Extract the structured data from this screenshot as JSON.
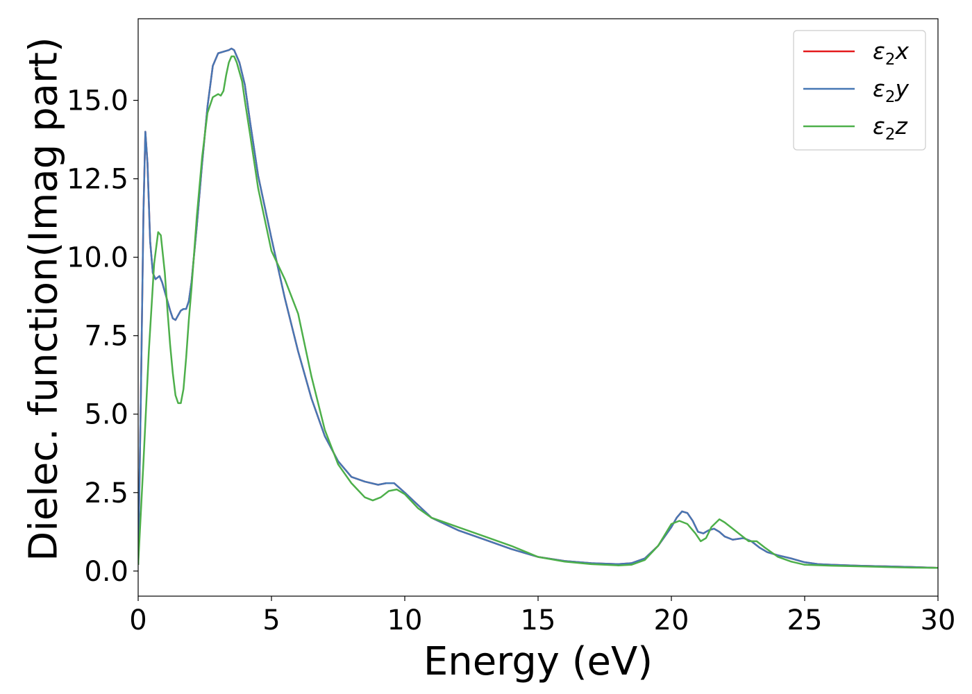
{
  "chart_data": {
    "type": "line",
    "xlabel": "Energy (eV)",
    "ylabel": "Dielec. function(Imag part)",
    "xlim": [
      0,
      30
    ],
    "ylim": [
      -0.8,
      17.6
    ],
    "xticks": [
      0,
      5,
      10,
      15,
      20,
      25,
      30
    ],
    "xtick_labels": [
      "0",
      "5",
      "10",
      "15",
      "20",
      "25",
      "30"
    ],
    "yticks": [
      0,
      2.5,
      5,
      7.5,
      10,
      12.5,
      15
    ],
    "ytick_labels": [
      "0.0",
      "2.5",
      "5.0",
      "7.5",
      "10.0",
      "12.5",
      "15.0"
    ],
    "grid": false,
    "legend_position": "top-right",
    "series": [
      {
        "name": "ε2x",
        "legend_sub": "2",
        "legend_var": "x",
        "color": "#e41a1c",
        "x": [
          0,
          0.1,
          0.2,
          0.27,
          0.35,
          0.45,
          0.55,
          0.65,
          0.8,
          0.9,
          1.0,
          1.1,
          1.2,
          1.3,
          1.4,
          1.5,
          1.6,
          1.7,
          1.8,
          1.9,
          2.0,
          2.2,
          2.4,
          2.6,
          2.8,
          3.0,
          3.2,
          3.4,
          3.5,
          3.6,
          3.8,
          4.0,
          4.2,
          4.5,
          5.0,
          5.5,
          6.0,
          6.5,
          7.0,
          7.5,
          8.0,
          8.5,
          9.0,
          9.3,
          9.6,
          10.0,
          10.5,
          11.0,
          12.0,
          13.0,
          14.0,
          15.0,
          16.0,
          17.0,
          18.0,
          18.5,
          19.0,
          19.5,
          20.0,
          20.2,
          20.4,
          20.6,
          20.8,
          21.0,
          21.2,
          21.4,
          21.6,
          21.8,
          22.0,
          22.3,
          22.7,
          23.0,
          23.3,
          23.6,
          24.0,
          24.5,
          25.0,
          25.5,
          26.0,
          27.0,
          28.0,
          29.0,
          30.0
        ],
        "values": [
          0.2,
          5.5,
          11.5,
          14.0,
          13.0,
          10.5,
          9.5,
          9.3,
          9.4,
          9.2,
          8.9,
          8.6,
          8.3,
          8.05,
          8.0,
          8.15,
          8.3,
          8.35,
          8.35,
          8.6,
          9.2,
          11.0,
          13.0,
          14.8,
          16.1,
          16.5,
          16.55,
          16.6,
          16.65,
          16.6,
          16.2,
          15.5,
          14.3,
          12.6,
          10.6,
          8.7,
          7.0,
          5.5,
          4.3,
          3.5,
          3.0,
          2.85,
          2.75,
          2.8,
          2.8,
          2.5,
          2.1,
          1.7,
          1.3,
          1.0,
          0.7,
          0.45,
          0.32,
          0.25,
          0.22,
          0.25,
          0.4,
          0.8,
          1.4,
          1.7,
          1.9,
          1.85,
          1.6,
          1.25,
          1.2,
          1.3,
          1.35,
          1.25,
          1.1,
          1.0,
          1.05,
          0.95,
          0.75,
          0.6,
          0.5,
          0.4,
          0.28,
          0.22,
          0.2,
          0.17,
          0.15,
          0.13,
          0.1
        ]
      },
      {
        "name": "ε2y",
        "legend_sub": "2",
        "legend_var": "y",
        "color": "#4677b4",
        "x": [
          0,
          0.1,
          0.2,
          0.27,
          0.35,
          0.45,
          0.55,
          0.65,
          0.8,
          0.9,
          1.0,
          1.1,
          1.2,
          1.3,
          1.4,
          1.5,
          1.6,
          1.7,
          1.8,
          1.9,
          2.0,
          2.2,
          2.4,
          2.6,
          2.8,
          3.0,
          3.2,
          3.4,
          3.5,
          3.6,
          3.8,
          4.0,
          4.2,
          4.5,
          5.0,
          5.5,
          6.0,
          6.5,
          7.0,
          7.5,
          8.0,
          8.5,
          9.0,
          9.3,
          9.6,
          10.0,
          10.5,
          11.0,
          12.0,
          13.0,
          14.0,
          15.0,
          16.0,
          17.0,
          18.0,
          18.5,
          19.0,
          19.5,
          20.0,
          20.2,
          20.4,
          20.6,
          20.8,
          21.0,
          21.2,
          21.4,
          21.6,
          21.8,
          22.0,
          22.3,
          22.7,
          23.0,
          23.3,
          23.6,
          24.0,
          24.5,
          25.0,
          25.5,
          26.0,
          27.0,
          28.0,
          29.0,
          30.0
        ],
        "values": [
          0.2,
          5.5,
          11.5,
          14.0,
          13.0,
          10.5,
          9.5,
          9.3,
          9.4,
          9.2,
          8.9,
          8.6,
          8.3,
          8.05,
          8.0,
          8.15,
          8.3,
          8.35,
          8.35,
          8.6,
          9.2,
          11.0,
          13.0,
          14.8,
          16.1,
          16.5,
          16.55,
          16.6,
          16.65,
          16.6,
          16.2,
          15.5,
          14.3,
          12.6,
          10.6,
          8.7,
          7.0,
          5.5,
          4.3,
          3.5,
          3.0,
          2.85,
          2.75,
          2.8,
          2.8,
          2.5,
          2.1,
          1.7,
          1.3,
          1.0,
          0.7,
          0.45,
          0.32,
          0.25,
          0.22,
          0.25,
          0.4,
          0.8,
          1.4,
          1.7,
          1.9,
          1.85,
          1.6,
          1.25,
          1.2,
          1.3,
          1.35,
          1.25,
          1.1,
          1.0,
          1.05,
          0.95,
          0.75,
          0.6,
          0.5,
          0.4,
          0.28,
          0.22,
          0.2,
          0.17,
          0.15,
          0.13,
          0.1
        ]
      },
      {
        "name": "ε2z",
        "legend_sub": "2",
        "legend_var": "z",
        "color": "#4daf4a",
        "x": [
          0,
          0.2,
          0.4,
          0.6,
          0.75,
          0.85,
          1.0,
          1.1,
          1.2,
          1.3,
          1.4,
          1.5,
          1.6,
          1.7,
          1.8,
          1.9,
          2.0,
          2.2,
          2.4,
          2.6,
          2.8,
          3.0,
          3.1,
          3.2,
          3.3,
          3.4,
          3.5,
          3.6,
          3.7,
          3.8,
          3.9,
          4.0,
          4.2,
          4.5,
          5.0,
          5.5,
          6.0,
          6.5,
          7.0,
          7.5,
          8.0,
          8.5,
          8.8,
          9.1,
          9.4,
          9.7,
          10.0,
          10.5,
          11.0,
          12.0,
          13.0,
          14.0,
          15.0,
          16.0,
          17.0,
          18.0,
          18.5,
          19.0,
          19.5,
          20.0,
          20.3,
          20.6,
          20.9,
          21.1,
          21.3,
          21.5,
          21.8,
          22.0,
          22.3,
          22.6,
          22.9,
          23.2,
          23.5,
          24.0,
          24.5,
          25.0,
          26.0,
          27.0,
          28.0,
          29.0,
          30.0
        ],
        "values": [
          0.2,
          3.5,
          7.0,
          9.8,
          10.8,
          10.7,
          9.5,
          8.3,
          7.2,
          6.3,
          5.6,
          5.35,
          5.35,
          5.8,
          6.8,
          8.0,
          9.0,
          11.3,
          13.2,
          14.6,
          15.1,
          15.2,
          15.15,
          15.3,
          15.8,
          16.2,
          16.4,
          16.4,
          16.2,
          15.9,
          15.6,
          15.0,
          13.9,
          12.2,
          10.2,
          9.3,
          8.2,
          6.2,
          4.5,
          3.4,
          2.8,
          2.35,
          2.25,
          2.35,
          2.55,
          2.6,
          2.45,
          2.0,
          1.7,
          1.4,
          1.1,
          0.8,
          0.45,
          0.3,
          0.22,
          0.18,
          0.2,
          0.35,
          0.8,
          1.5,
          1.6,
          1.5,
          1.2,
          0.95,
          1.05,
          1.4,
          1.65,
          1.55,
          1.35,
          1.15,
          0.95,
          0.95,
          0.75,
          0.45,
          0.3,
          0.2,
          0.17,
          0.15,
          0.13,
          0.11,
          0.1
        ]
      }
    ]
  }
}
